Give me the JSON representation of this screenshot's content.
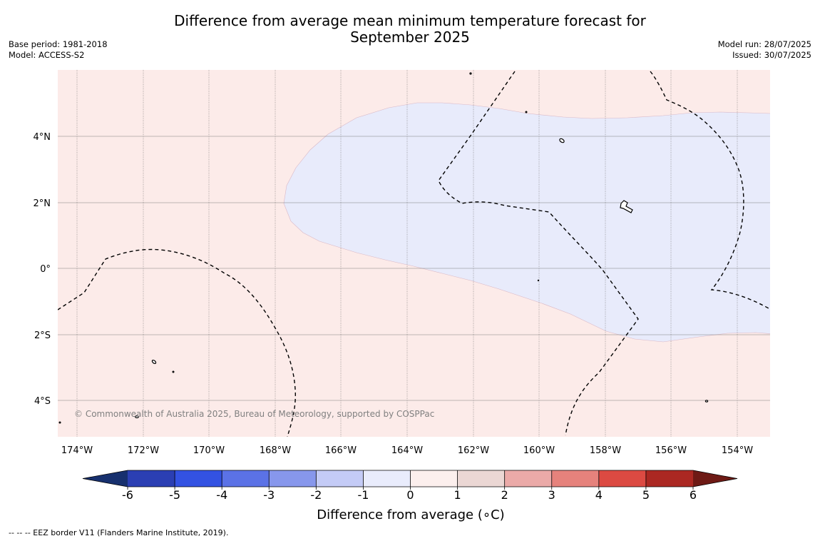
{
  "title_line1": "Difference from average mean minimum temperature forecast for",
  "title_line2": "September 2025",
  "base_period": "Base period: 1981-2018",
  "model": "Model: ACCESS-S2",
  "model_run": "Model run: 28/07/2025",
  "issued": "Issued: 30/07/2025",
  "copyright": "© Commonwealth of Australia 2025, Bureau of Meteorology, supported by COSPPac",
  "footnote": "--  --  -- EEZ border V11 (Flanders Marine Institute, 2019).",
  "map": {
    "lon_labels": [
      "174°W",
      "172°W",
      "170°W",
      "168°W",
      "166°W",
      "164°W",
      "162°W",
      "160°W",
      "158°W",
      "156°W",
      "154°W"
    ],
    "lat_labels": [
      "4°N",
      "2°N",
      "0°",
      "2°S",
      "4°S"
    ],
    "background_category": "0 to 1",
    "anomaly_region_category": "-1 to 0"
  },
  "colorbar": {
    "label": "Difference from average (∘C)",
    "ticks": [
      "-6",
      "-5",
      "-4",
      "-3",
      "-2",
      "-1",
      "0",
      "1",
      "2",
      "3",
      "4",
      "5",
      "6"
    ],
    "colors": [
      "#17306e",
      "#2b3fb3",
      "#3352e2",
      "#5b72e6",
      "#8797ec",
      "#c4cbf6",
      "#e9ecfc",
      "#fcefed",
      "#ebd7d4",
      "#ebaaa8",
      "#e6827c",
      "#dc4a42",
      "#ab2822",
      "#6e1a15"
    ]
  },
  "colors": {
    "positive_fill": "#fcebe9",
    "negative_fill": "#e8ebfb"
  }
}
